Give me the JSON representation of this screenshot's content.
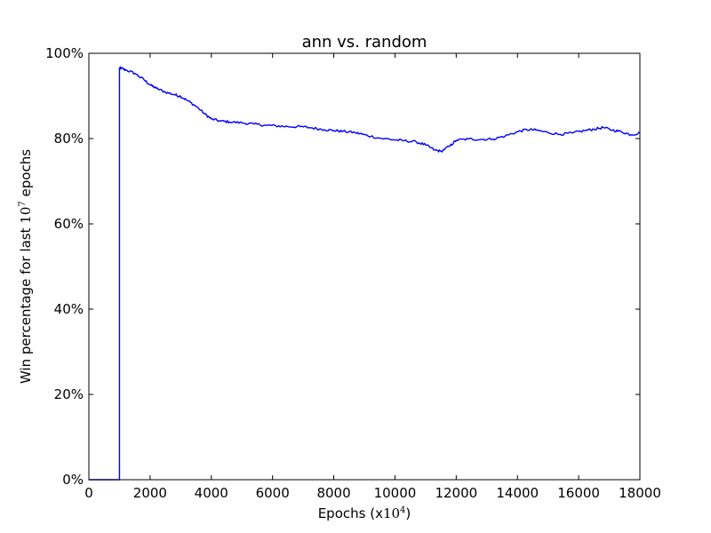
{
  "chart_data": {
    "type": "line",
    "title": "ann vs. random",
    "xlabel": {
      "prefix": "Epochs (x",
      "base": "10",
      "exp": "4",
      "suffix": ")"
    },
    "ylabel": {
      "prefix": "Win percentage for last ",
      "base": "10",
      "exp": "7",
      "suffix": " epochs"
    },
    "xlim": [
      0,
      18000
    ],
    "ylim": [
      0,
      100
    ],
    "xticks": [
      0,
      2000,
      4000,
      6000,
      8000,
      10000,
      12000,
      14000,
      16000,
      18000
    ],
    "yticks": [
      0,
      20,
      40,
      60,
      80,
      100
    ],
    "yticklabels": [
      "0%",
      "20%",
      "40%",
      "60%",
      "80%",
      "100%"
    ],
    "grid": false,
    "line_color": "#0000ff",
    "series": [
      {
        "x": [
          0,
          1000,
          1000,
          1050,
          1200,
          1500,
          1800,
          2000,
          2200,
          2500,
          2800,
          3000,
          3200,
          3500,
          3800,
          4000,
          4300,
          4600,
          5000,
          5400,
          5800,
          6100,
          6500,
          6900,
          7300,
          7700,
          8000,
          8300,
          8700,
          9000,
          9500,
          10000,
          10300,
          10700,
          11000,
          11300,
          11500,
          11800,
          12000,
          12400,
          12800,
          13200,
          13600,
          14000,
          14300,
          14600,
          15000,
          15400,
          15800,
          16200,
          16500,
          16800,
          17100,
          17400,
          17700,
          18000
        ],
        "y": [
          0,
          0,
          96.5,
          96.5,
          96.1,
          95.3,
          93.8,
          92.6,
          91.8,
          90.9,
          90.3,
          89.9,
          89.0,
          87.6,
          85.7,
          84.6,
          84.1,
          83.9,
          83.7,
          83.4,
          83.1,
          83.0,
          82.8,
          82.8,
          82.5,
          82.1,
          81.9,
          81.7,
          81.4,
          80.9,
          80.1,
          79.7,
          79.5,
          79.2,
          78.5,
          77.3,
          77.0,
          78.3,
          79.6,
          79.9,
          79.8,
          79.9,
          80.6,
          81.6,
          82.1,
          82.0,
          81.4,
          81.0,
          81.3,
          81.9,
          82.2,
          82.6,
          82.0,
          81.6,
          80.9,
          81.3
        ]
      }
    ]
  }
}
